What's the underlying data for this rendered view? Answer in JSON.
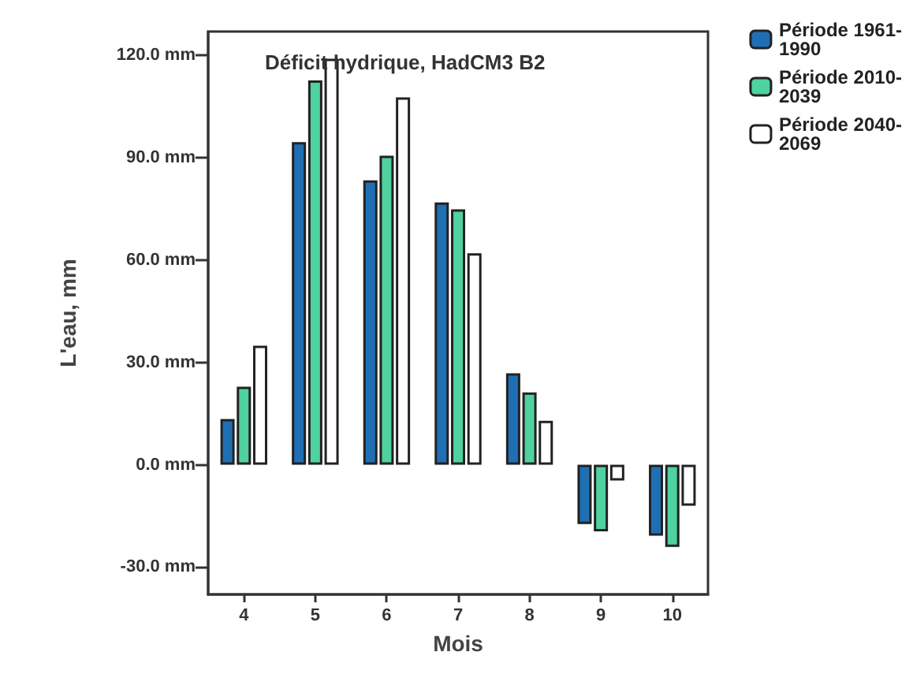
{
  "chart_data": {
    "type": "bar",
    "title": "Déficit hydrique, HadCM3 B2",
    "xlabel": "Mois",
    "ylabel": "L'eau, mm",
    "categories": [
      "4",
      "5",
      "6",
      "7",
      "8",
      "9",
      "10"
    ],
    "series": [
      {
        "name": "Période 1961-1990",
        "color": "#1f6fb5",
        "values": [
          13.4,
          94.6,
          83.4,
          76.9,
          26.8,
          -17.4,
          -20.8
        ]
      },
      {
        "name": "Période 2010-2039",
        "color": "#4fd1a0",
        "values": [
          22.9,
          112.7,
          90.6,
          74.9,
          21.2,
          -19.5,
          -24.1
        ]
      },
      {
        "name": "Période 2040-2069",
        "color": "#ffffff",
        "values": [
          34.9,
          119,
          107.7,
          62.0,
          12.9,
          -4.6,
          -12.0
        ]
      }
    ],
    "ylim": [
      -38,
      127
    ],
    "yticks": [
      {
        "value": -30,
        "label": "-30.0 mm"
      },
      {
        "value": 0,
        "label": "0.0 mm"
      },
      {
        "value": 30,
        "label": "30.0 mm"
      },
      {
        "value": 60,
        "label": "60.0 mm"
      },
      {
        "value": 90,
        "label": "90.0 mm"
      },
      {
        "value": 120,
        "label": "120.0 mm"
      }
    ],
    "grid": false,
    "legend": "top right"
  }
}
